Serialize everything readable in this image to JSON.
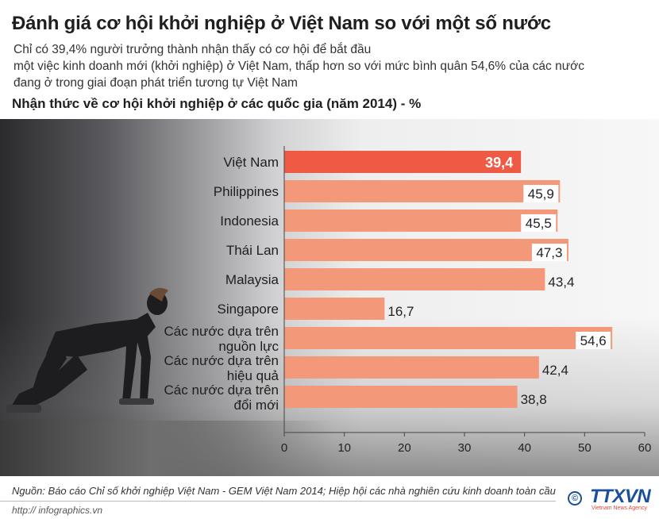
{
  "title": "Đánh giá cơ hội khởi nghiệp ở Việt Nam so với một số nước",
  "subtitle_lines": [
    "Chỉ có 39,4% người trưởng thành nhận thấy có cơ hội để bắt đầu",
    "một việc kinh doanh mới (khởi nghiệp) ở Việt Nam, thấp hơn so với mức bình quân 54,6% của các nước",
    "đang ở trong giai đoạn phát triển tương tự Việt Nam"
  ],
  "chart_heading": "Nhận thức về cơ hội khởi nghiệp ở các quốc gia (năm 2014) - %",
  "chart_data": {
    "type": "bar",
    "orientation": "horizontal",
    "categories": [
      [
        "Việt Nam"
      ],
      [
        "Philippines"
      ],
      [
        "Indonesia"
      ],
      [
        "Thái Lan"
      ],
      [
        "Malaysia"
      ],
      [
        "Singapore"
      ],
      [
        "Các nước dựa trên",
        "nguồn lực"
      ],
      [
        "Các nước dựa trên",
        "hiệu quả"
      ],
      [
        "Các nước dựa trên",
        "đổi mới"
      ]
    ],
    "values": [
      39.4,
      45.9,
      45.5,
      47.3,
      43.4,
      16.7,
      54.6,
      42.4,
      38.8
    ],
    "value_labels": [
      "39,4",
      "45,9",
      "45,5",
      "47,3",
      "43,4",
      "16,7",
      "54,6",
      "42,4",
      "38,8"
    ],
    "highlight_index": 0,
    "xlim": [
      0,
      60
    ],
    "xticks": [
      0,
      10,
      20,
      30,
      40,
      50,
      60
    ],
    "grid": false,
    "legend": "none",
    "colors": {
      "highlight_bar": "#ee5a44",
      "bar": "#f4987a",
      "highlight_label": "#ffffff",
      "label": "#222222",
      "label_box": "#ffffff"
    }
  },
  "footer": {
    "source": "Nguồn: Báo cáo Chỉ số khởi nghiệp Việt Nam - GEM Việt Nam 2014; Hiệp hội các nhà nghiên cứu kinh doanh toàn cầu",
    "url": "http:// infographics.vn",
    "logo_text": "TTXVN",
    "logo_sub": "Vietnam News Agency"
  }
}
